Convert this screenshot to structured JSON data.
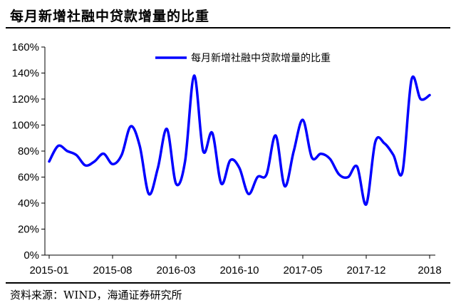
{
  "figure": {
    "title": "每月新增社融中贷款增量的比重",
    "source": "资料来源：WIND，海通证券研究所"
  },
  "chart_data": {
    "type": "line",
    "title": "",
    "xlabel": "",
    "ylabel": "",
    "ylim": [
      0,
      160
    ],
    "yticks": [
      "0%",
      "20%",
      "40%",
      "60%",
      "80%",
      "100%",
      "120%",
      "140%",
      "160%"
    ],
    "xticks": [
      {
        "index": 0,
        "label": "2015-01"
      },
      {
        "index": 7,
        "label": "2015-08"
      },
      {
        "index": 14,
        "label": "2016-03"
      },
      {
        "index": 21,
        "label": "2016-10"
      },
      {
        "index": 28,
        "label": "2017-05"
      },
      {
        "index": 35,
        "label": "2017-12"
      },
      {
        "index": 42,
        "label": "2018"
      }
    ],
    "grid": false,
    "legend_position": "top-right",
    "color": "#0000ff",
    "series": [
      {
        "name": "每月新增社融中贷款增量的比重",
        "values": [
          72,
          84,
          80,
          77,
          69,
          72,
          78,
          70,
          77,
          99,
          84,
          47,
          67,
          97,
          55,
          72,
          138,
          80,
          94,
          55,
          73,
          67,
          47,
          60,
          62,
          92,
          53,
          80,
          104,
          75,
          78,
          74,
          62,
          60,
          68,
          39,
          87,
          86,
          77,
          64,
          135,
          120,
          123
        ]
      }
    ]
  }
}
